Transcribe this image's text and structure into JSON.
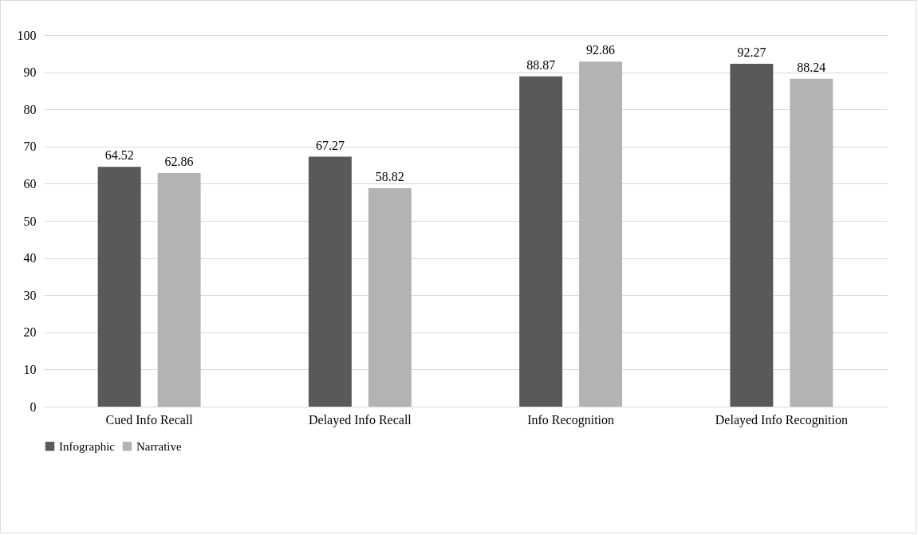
{
  "chart_data": {
    "type": "bar",
    "categories": [
      "Cued Info Recall",
      "Delayed Info Recall",
      "Info Recognition",
      "Delayed Info Recognition"
    ],
    "series": [
      {
        "name": "Infographic",
        "color": "#595959",
        "values": [
          64.52,
          67.27,
          88.87,
          92.27
        ]
      },
      {
        "name": "Narrative",
        "color": "#b3b3b3",
        "values": [
          62.86,
          58.82,
          92.86,
          88.24
        ]
      }
    ],
    "ylim": [
      0,
      100
    ],
    "yticks": [
      0,
      10,
      20,
      30,
      40,
      50,
      60,
      70,
      80,
      90,
      100
    ],
    "grid": "y",
    "legend": "bottom",
    "data_labels": true
  }
}
